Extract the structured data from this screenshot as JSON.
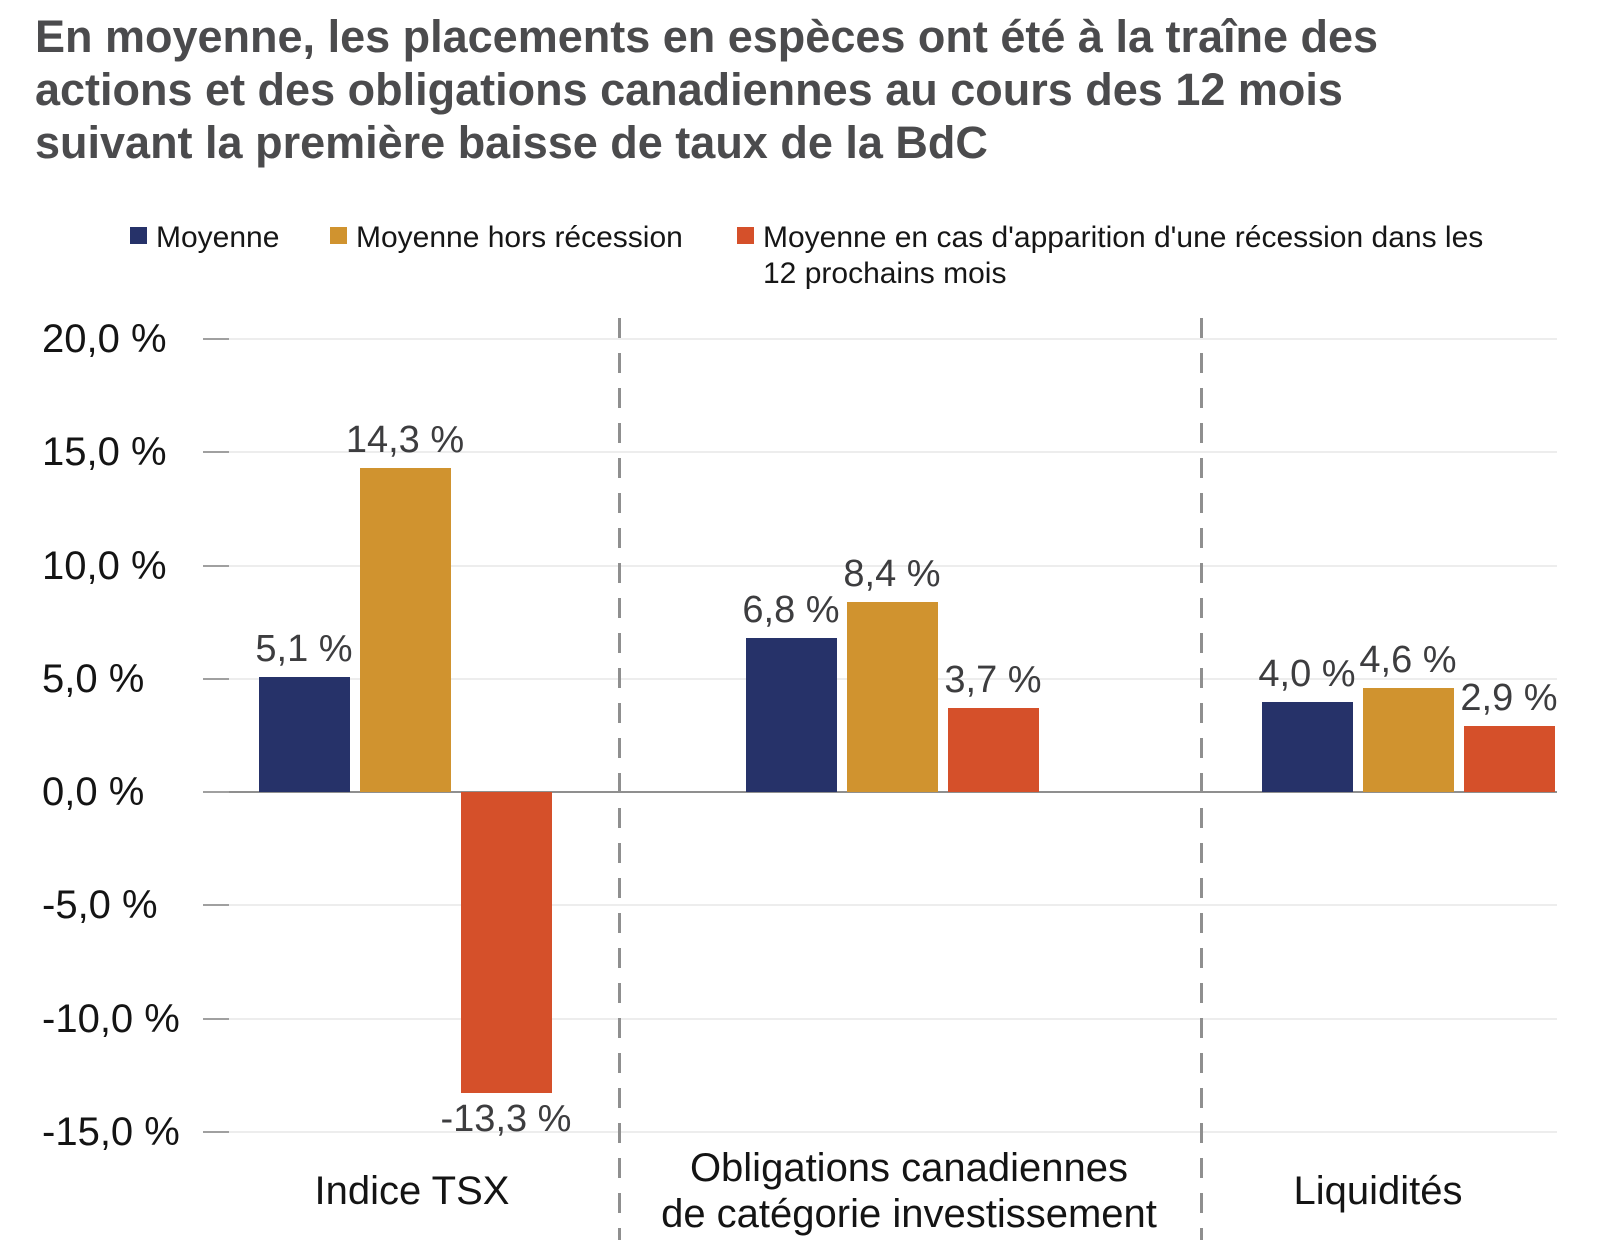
{
  "title_lines": [
    "En moyenne, les placements en espèces ont été à la traîne des",
    "actions et des obligations canadiennes au cours des 12 mois",
    "suivant la première baisse de taux de la BdC"
  ],
  "chart_data": {
    "type": "bar",
    "title": "En moyenne, les placements en espèces ont été à la traîne des actions et des obligations canadiennes au cours des 12 mois suivant la première baisse de taux de la BdC",
    "categories": [
      "Indice TSX",
      "Obligations canadiennes\nde catégorie investissement",
      "Liquidités"
    ],
    "series": [
      {
        "name": "Moyenne",
        "color": "#263269",
        "values": [
          5.1,
          6.8,
          4.0
        ],
        "labels": [
          "5,1 %",
          "6,8 %",
          "4,0 %"
        ]
      },
      {
        "name": "Moyenne hors récession",
        "color": "#d0932f",
        "values": [
          14.3,
          8.4,
          4.6
        ],
        "labels": [
          "14,3 %",
          "8,4 %",
          "4,6 %"
        ]
      },
      {
        "name": "Moyenne en cas d'apparition d'une récession dans les 12 prochains mois",
        "color": "#d5502a",
        "values": [
          -13.3,
          3.7,
          2.9
        ],
        "labels": [
          "-13,3 %",
          "3,7 %",
          "2,9 %"
        ]
      }
    ],
    "y_axis": {
      "min": -15,
      "max": 20,
      "ticks": [
        {
          "value": 20,
          "label": "20,0 %"
        },
        {
          "value": 15,
          "label": "15,0 %"
        },
        {
          "value": 10,
          "label": "10,0 %"
        },
        {
          "value": 5,
          "label": "5,0 %"
        },
        {
          "value": 0,
          "label": "0,0 %"
        },
        {
          "value": -5,
          "label": "-5,0 %"
        },
        {
          "value": -10,
          "label": "-10,0 %"
        },
        {
          "value": -15,
          "label": "-15,0 %"
        }
      ]
    },
    "legend_position": "top",
    "grid": "horizontal-faint",
    "group_separators": "vertical-dashed"
  },
  "colors": {
    "title_text": "#4b4b4d",
    "axis_text": "#141414",
    "data_label_text": "#3d3d3f",
    "zero_line": "#8f8f8f",
    "faint_grid": "#ededed",
    "separator": "#8f8f8f"
  }
}
